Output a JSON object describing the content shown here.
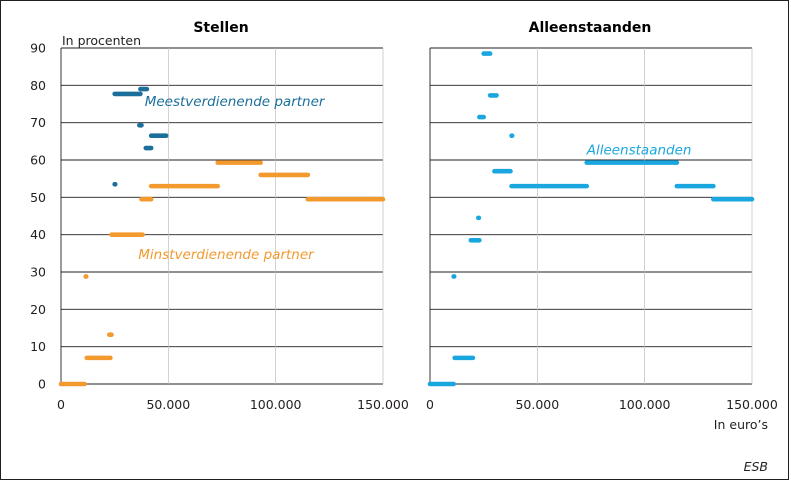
{
  "colors": {
    "meest": "#1b6f9a",
    "minst": "#f29a2e",
    "alleen": "#1aa7df",
    "grid": "#231f20",
    "vgrid": "#bdbdbd"
  },
  "source": "ESB",
  "chart_data": [
    {
      "type": "scatter",
      "title": "Stellen",
      "ylabel": "In procenten",
      "xlabel": "",
      "xlim": [
        0,
        150000
      ],
      "ylim": [
        0,
        90
      ],
      "x_ticks": [
        0,
        50000,
        100000,
        150000
      ],
      "x_tick_labels": [
        "0",
        "50.000",
        "100.000",
        "150.000"
      ],
      "y_ticks": [
        0,
        10,
        20,
        30,
        40,
        50,
        60,
        70,
        80,
        90
      ],
      "y_tick_labels": [
        "0",
        "10",
        "20",
        "30",
        "40",
        "50",
        "60",
        "70",
        "80",
        "90"
      ],
      "series": [
        {
          "name": "Minstverdienende partner",
          "color_key": "minst",
          "segments": [
            {
              "x": [
                0,
                11000
              ],
              "y": 0
            },
            {
              "x": [
                11500,
                11500
              ],
              "y": 28.8
            },
            {
              "x": [
                12000,
                23000
              ],
              "y": 7
            },
            {
              "x": [
                22500,
                23500
              ],
              "y": 13.2
            },
            {
              "x": [
                23500,
                38000
              ],
              "y": 40
            },
            {
              "x": [
                37500,
                42000
              ],
              "y": 49.5
            },
            {
              "x": [
                42000,
                73000
              ],
              "y": 53
            },
            {
              "x": [
                73000,
                93000
              ],
              "y": 59.3
            },
            {
              "x": [
                93000,
                115000
              ],
              "y": 56
            },
            {
              "x": [
                115000,
                150000
              ],
              "y": 49.5
            }
          ]
        },
        {
          "name": "Meestverdienende partner",
          "color_key": "meest",
          "segments": [
            {
              "x": [
                25000,
                25000
              ],
              "y": 53.5
            },
            {
              "x": [
                25000,
                37000
              ],
              "y": 77.7
            },
            {
              "x": [
                37000,
                40000
              ],
              "y": 79
            },
            {
              "x": [
                36500,
                37500
              ],
              "y": 69.3
            },
            {
              "x": [
                39500,
                42000
              ],
              "y": 63.2
            },
            {
              "x": [
                42000,
                49000
              ],
              "y": 66.5
            }
          ]
        }
      ],
      "annotations": [
        {
          "text": "Meestverdienende partner",
          "color_key": "meest",
          "x": 39000,
          "y": 75
        },
        {
          "text": "Minstverdienende partner",
          "color_key": "minst",
          "x": 36000,
          "y": 34
        }
      ]
    },
    {
      "type": "scatter",
      "title": "Alleenstaanden",
      "ylabel": "",
      "xlabel": "In euro’s",
      "xlim": [
        0,
        150000
      ],
      "ylim": [
        0,
        90
      ],
      "x_ticks": [
        0,
        50000,
        100000,
        150000
      ],
      "x_tick_labels": [
        "0",
        "50.000",
        "100.000",
        "150.000"
      ],
      "series": [
        {
          "name": "Alleenstaanden",
          "color_key": "alleen",
          "segments": [
            {
              "x": [
                0,
                11000
              ],
              "y": 0
            },
            {
              "x": [
                11000,
                11000
              ],
              "y": 28.8
            },
            {
              "x": [
                11500,
                20000
              ],
              "y": 7
            },
            {
              "x": [
                19000,
                23000
              ],
              "y": 38.5
            },
            {
              "x": [
                22500,
                22500
              ],
              "y": 44.5
            },
            {
              "x": [
                23000,
                25000
              ],
              "y": 71.5
            },
            {
              "x": [
                25000,
                28000
              ],
              "y": 88.5
            },
            {
              "x": [
                28000,
                31000
              ],
              "y": 77.3
            },
            {
              "x": [
                30000,
                37500
              ],
              "y": 57
            },
            {
              "x": [
                38000,
                38000
              ],
              "y": 66.5
            },
            {
              "x": [
                38000,
                73000
              ],
              "y": 53
            },
            {
              "x": [
                73000,
                115000
              ],
              "y": 59.3
            },
            {
              "x": [
                115000,
                132000
              ],
              "y": 53
            },
            {
              "x": [
                132000,
                150000
              ],
              "y": 49.5
            }
          ]
        }
      ],
      "annotations": [
        {
          "text": "Alleenstaanden",
          "color_key": "alleen",
          "x": 73000,
          "y": 62
        }
      ]
    }
  ]
}
